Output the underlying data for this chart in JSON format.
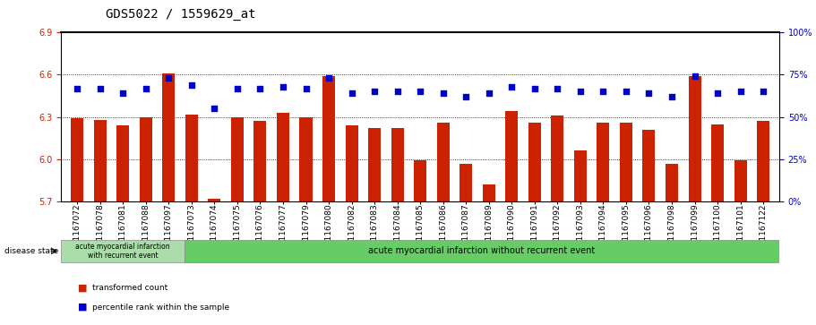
{
  "title": "GDS5022 / 1559629_at",
  "samples": [
    "GSM1167072",
    "GSM1167078",
    "GSM1167081",
    "GSM1167088",
    "GSM1167097",
    "GSM1167073",
    "GSM1167074",
    "GSM1167075",
    "GSM1167076",
    "GSM1167077",
    "GSM1167079",
    "GSM1167080",
    "GSM1167082",
    "GSM1167083",
    "GSM1167084",
    "GSM1167085",
    "GSM1167086",
    "GSM1167087",
    "GSM1167089",
    "GSM1167090",
    "GSM1167091",
    "GSM1167092",
    "GSM1167093",
    "GSM1167094",
    "GSM1167095",
    "GSM1167096",
    "GSM1167098",
    "GSM1167099",
    "GSM1167100",
    "GSM1167101",
    "GSM1167122"
  ],
  "bar_values": [
    6.29,
    6.28,
    6.24,
    6.3,
    6.61,
    6.32,
    5.72,
    6.3,
    6.27,
    6.33,
    6.3,
    6.59,
    6.24,
    6.22,
    6.22,
    5.99,
    6.26,
    5.97,
    5.82,
    6.34,
    6.26,
    6.31,
    6.06,
    6.26,
    6.26,
    6.21,
    5.97,
    6.59,
    6.25,
    5.99,
    6.27
  ],
  "percentile_values": [
    67,
    67,
    64,
    67,
    73,
    69,
    55,
    67,
    67,
    68,
    67,
    73,
    64,
    65,
    65,
    65,
    64,
    62,
    64,
    68,
    67,
    67,
    65,
    65,
    65,
    64,
    62,
    74,
    64,
    65,
    65
  ],
  "ylim_left": [
    5.7,
    6.9
  ],
  "ylim_right": [
    0,
    100
  ],
  "yticks_left": [
    5.7,
    6.0,
    6.3,
    6.6,
    6.9
  ],
  "yticks_right": [
    0,
    25,
    50,
    75,
    100
  ],
  "bar_color": "#cc2200",
  "dot_color": "#0000cc",
  "bg_color": "#d8d8d8",
  "group1_label": "acute myocardial infarction\nwith recurrent event",
  "group2_label": "acute myocardial infarction without recurrent event",
  "group1_count": 5,
  "disease_state_label": "disease state",
  "legend_bar_label": "transformed count",
  "legend_dot_label": "percentile rank within the sample",
  "title_fontsize": 10,
  "tick_fontsize": 7,
  "label_fontsize": 6.5
}
